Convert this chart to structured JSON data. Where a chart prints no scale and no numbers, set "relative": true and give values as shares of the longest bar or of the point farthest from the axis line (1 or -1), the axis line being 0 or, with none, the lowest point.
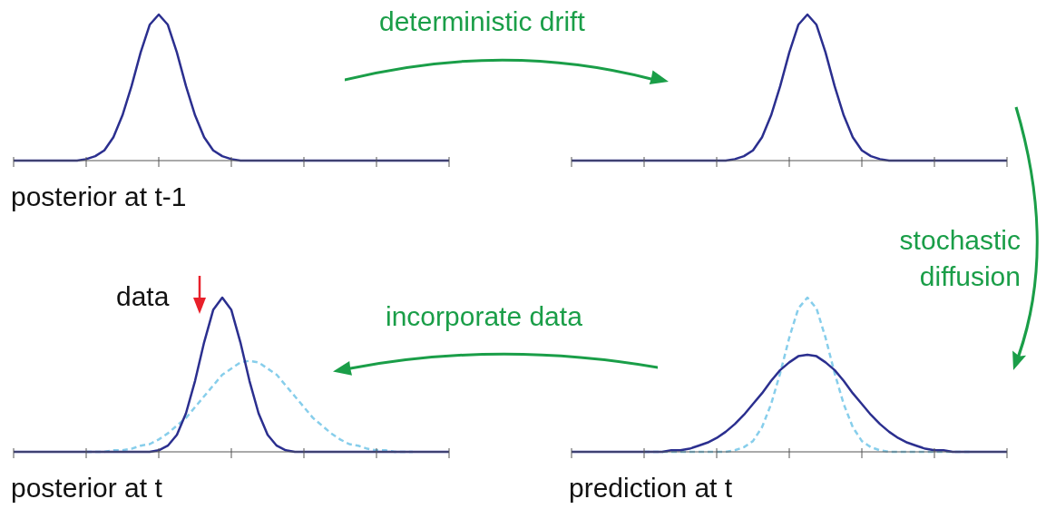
{
  "chart_data": [
    {
      "type": "line",
      "relative": true,
      "tick_labels": false,
      "xlabel": "posterior at t-1",
      "annotations": [
        "deterministic drift"
      ],
      "categories": [
        null,
        null,
        null,
        null,
        null,
        null,
        null,
        null,
        null,
        null,
        null,
        null,
        null,
        null,
        null,
        null,
        null,
        null,
        null,
        null,
        null,
        null,
        null,
        null,
        null,
        null,
        null,
        null,
        null,
        null,
        null,
        null,
        null,
        null,
        null,
        null,
        null,
        null,
        null,
        null,
        null,
        null,
        null,
        null,
        null,
        null,
        null,
        null,
        null
      ],
      "series": [
        {
          "color": "#2b2f8f",
          "values": [
            0,
            0,
            0,
            0,
            0,
            0,
            0,
            0,
            0.01,
            0.03,
            0.07,
            0.16,
            0.31,
            0.51,
            0.74,
            0.93,
            1,
            0.93,
            0.74,
            0.51,
            0.31,
            0.16,
            0.07,
            0.03,
            0.01,
            0,
            0,
            0,
            0,
            0,
            0,
            0,
            0,
            0,
            0,
            0,
            0,
            0,
            0,
            0,
            0,
            0,
            0,
            0,
            0,
            0,
            0,
            0,
            0
          ]
        }
      ]
    },
    {
      "type": "line",
      "relative": true,
      "tick_labels": false,
      "annotations": [
        "stochastic diffusion"
      ],
      "categories": [
        null,
        null,
        null,
        null,
        null,
        null,
        null,
        null,
        null,
        null,
        null,
        null,
        null,
        null,
        null,
        null,
        null,
        null,
        null,
        null,
        null,
        null,
        null,
        null,
        null,
        null,
        null,
        null,
        null,
        null,
        null,
        null,
        null,
        null,
        null,
        null,
        null,
        null,
        null,
        null,
        null,
        null,
        null,
        null,
        null,
        null,
        null,
        null,
        null
      ],
      "series": [
        {
          "color": "#2b2f8f",
          "values": [
            0,
            0,
            0,
            0,
            0,
            0,
            0,
            0,
            0,
            0,
            0,
            0,
            0,
            0,
            0,
            0,
            0,
            0,
            0.01,
            0.03,
            0.07,
            0.16,
            0.31,
            0.51,
            0.74,
            0.93,
            1,
            0.93,
            0.74,
            0.51,
            0.31,
            0.16,
            0.07,
            0.03,
            0.01,
            0,
            0,
            0,
            0,
            0,
            0,
            0,
            0,
            0,
            0,
            0,
            0,
            0,
            0
          ]
        }
      ]
    },
    {
      "type": "line",
      "relative": true,
      "tick_labels": false,
      "xlabel": "posterior at t",
      "annotations": [
        "data"
      ],
      "categories": [
        null,
        null,
        null,
        null,
        null,
        null,
        null,
        null,
        null,
        null,
        null,
        null,
        null,
        null,
        null,
        null,
        null,
        null,
        null,
        null,
        null,
        null,
        null,
        null,
        null,
        null,
        null,
        null,
        null,
        null,
        null,
        null,
        null,
        null,
        null,
        null,
        null,
        null,
        null,
        null,
        null,
        null,
        null,
        null,
        null,
        null,
        null,
        null,
        null
      ],
      "series": [
        {
          "color": "#2b2f8f",
          "values": [
            0,
            0,
            0,
            0,
            0,
            0,
            0,
            0,
            0,
            0,
            0,
            0,
            0,
            0,
            0,
            0,
            0.01,
            0.04,
            0.11,
            0.25,
            0.46,
            0.71,
            0.92,
            1,
            0.92,
            0.71,
            0.46,
            0.25,
            0.11,
            0.04,
            0.01,
            0,
            0,
            0,
            0,
            0,
            0,
            0,
            0,
            0,
            0,
            0,
            0,
            0,
            0,
            0,
            0,
            0,
            0
          ]
        },
        {
          "color": "#87ceeb",
          "line_style": "dashed",
          "values": [
            null,
            null,
            null,
            null,
            null,
            null,
            null,
            null,
            0,
            0,
            0,
            0.01,
            0.01,
            0.02,
            0.04,
            0.05,
            0.08,
            0.12,
            0.17,
            0.22,
            0.29,
            0.36,
            0.43,
            0.5,
            0.54,
            0.58,
            0.59,
            0.58,
            0.54,
            0.5,
            0.43,
            0.36,
            0.29,
            0.22,
            0.17,
            0.12,
            0.08,
            0.05,
            0.04,
            0.02,
            0.01,
            0.01,
            0,
            0,
            0,
            null,
            null,
            null,
            null
          ]
        }
      ]
    },
    {
      "type": "line",
      "relative": true,
      "tick_labels": false,
      "xlabel": "prediction at t",
      "annotations": [
        "incorporate data"
      ],
      "categories": [
        null,
        null,
        null,
        null,
        null,
        null,
        null,
        null,
        null,
        null,
        null,
        null,
        null,
        null,
        null,
        null,
        null,
        null,
        null,
        null,
        null,
        null,
        null,
        null,
        null,
        null,
        null,
        null,
        null,
        null,
        null,
        null,
        null,
        null,
        null,
        null,
        null,
        null,
        null,
        null,
        null,
        null,
        null,
        null,
        null,
        null,
        null,
        null,
        null
      ],
      "series": [
        {
          "color": "#2b2f8f",
          "values": [
            0,
            0,
            0,
            0,
            0,
            0,
            0,
            0,
            0,
            0,
            0,
            0.01,
            0.01,
            0.02,
            0.04,
            0.06,
            0.09,
            0.13,
            0.18,
            0.24,
            0.31,
            0.38,
            0.46,
            0.53,
            0.58,
            0.62,
            0.63,
            0.62,
            0.58,
            0.53,
            0.46,
            0.38,
            0.31,
            0.24,
            0.18,
            0.13,
            0.09,
            0.06,
            0.04,
            0.02,
            0.01,
            0.01,
            0,
            0,
            0,
            0,
            0,
            0,
            0
          ]
        },
        {
          "color": "#87ceeb",
          "line_style": "dashed",
          "values": [
            null,
            null,
            null,
            null,
            null,
            null,
            null,
            null,
            0,
            0,
            0,
            0,
            0,
            0,
            0,
            0,
            0,
            0,
            0.01,
            0.03,
            0.07,
            0.16,
            0.31,
            0.51,
            0.74,
            0.93,
            1,
            0.93,
            0.74,
            0.51,
            0.31,
            0.16,
            0.07,
            0.03,
            0.01,
            0,
            0,
            0,
            0,
            0,
            0,
            0,
            0,
            0,
            0,
            null,
            null,
            null,
            null
          ]
        }
      ]
    }
  ]
}
